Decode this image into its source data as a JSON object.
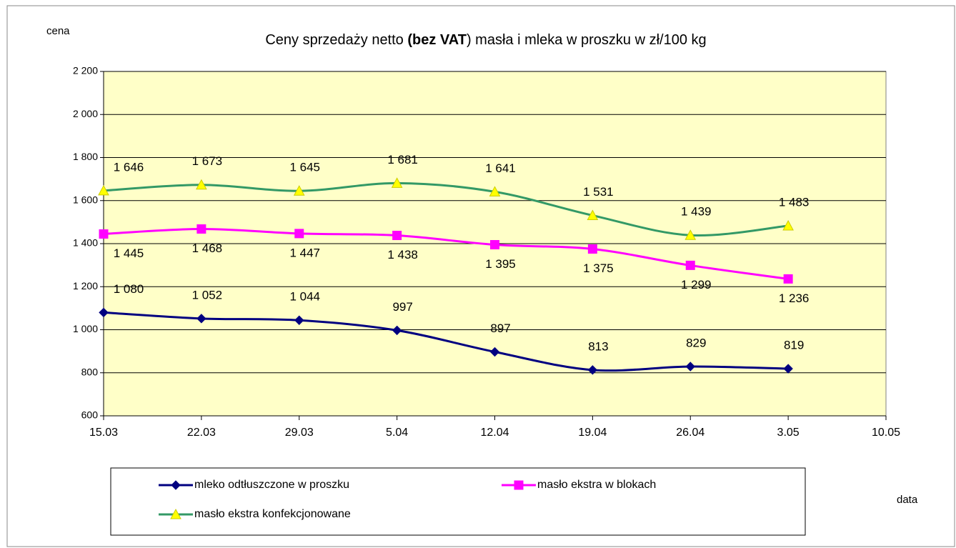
{
  "chart_data": {
    "type": "line",
    "title": [
      {
        "text": "Ceny sprzedaży netto ",
        "bold": false
      },
      {
        "text": "(bez VAT",
        "bold": true
      },
      {
        "text": ") masła i mleka w proszku w zł/100 kg",
        "bold": false
      }
    ],
    "y_label": "cena",
    "x_label": "data",
    "categories": [
      "15.03",
      "22.03",
      "29.03",
      "5.04",
      "12.04",
      "19.04",
      "26.04",
      "3.05",
      "10.05"
    ],
    "series": [
      {
        "name": "mleko odtłuszczone w proszku",
        "color": "#000080",
        "marker": "diamond",
        "marker_color": "#000080",
        "label_position": "above",
        "values": [
          1080,
          1052,
          1044,
          997,
          897,
          813,
          829,
          819,
          null
        ],
        "value_labels": [
          "1 080",
          "1 052",
          "1 044",
          "997",
          "897",
          "813",
          "829",
          "819",
          null
        ]
      },
      {
        "name": "masło ekstra w blokach",
        "color": "#ff00ff",
        "marker": "square",
        "marker_color": "#ff00ff",
        "label_position": "below",
        "values": [
          1445,
          1468,
          1447,
          1438,
          1395,
          1375,
          1299,
          1236,
          null
        ],
        "value_labels": [
          "1 445",
          "1 468",
          "1 447",
          "1 438",
          "1 395",
          "1 375",
          "1 299",
          "1 236",
          null
        ]
      },
      {
        "name": "masło ekstra konfekcjonowane",
        "color": "#339966",
        "marker": "triangle",
        "marker_color": "#ffff00",
        "label_position": "above",
        "values": [
          1646,
          1673,
          1645,
          1681,
          1641,
          1531,
          1439,
          1483,
          null
        ],
        "value_labels": [
          "1 646",
          "1 673",
          "1 645",
          "1 681",
          "1 641",
          "1 531",
          "1 439",
          "1 483",
          null
        ]
      }
    ],
    "ylim": [
      600,
      2200
    ],
    "yticks": [
      600,
      800,
      {
        "value": 1000,
        "label": "1 000"
      },
      {
        "value": 1200,
        "label": "1 200"
      },
      {
        "value": 1400,
        "label": "1 400"
      },
      {
        "value": 1600,
        "label": "1 600"
      },
      {
        "value": 1800,
        "label": "1 800"
      },
      {
        "value": 2000,
        "label": "2 000"
      },
      {
        "value": 2200,
        "label": "2 200"
      }
    ],
    "grid": true,
    "smooth": true,
    "plot_background": "#ffffc8"
  }
}
